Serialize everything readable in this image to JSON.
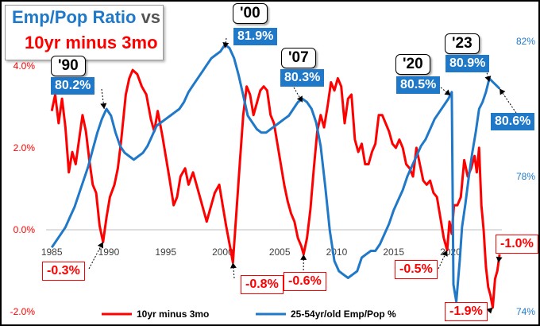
{
  "chart_data": {
    "type": "line",
    "title_part1": "Emp/Pop Ratio",
    "title_vs": " vs",
    "title_part2": "10yr minus 3mo",
    "xlim": [
      1984.5,
      2024.5
    ],
    "x_ticks": [
      "1985",
      "1990",
      "1995",
      "2000",
      "2005",
      "2010",
      "2015",
      "2020"
    ],
    "y_left": {
      "ticks": [
        "4.0%",
        "2.0%",
        "0.0%",
        "-2.0%"
      ],
      "values": [
        4,
        2,
        0,
        -2
      ],
      "ylim": [
        -2,
        4.6
      ]
    },
    "y_right": {
      "ticks": [
        "82%",
        "78%",
        "74%"
      ],
      "values": [
        82,
        78,
        74
      ],
      "ylim": [
        74,
        82
      ]
    },
    "series": [
      {
        "name": "10yr minus 3mo",
        "color": "#ff0000",
        "axis": "left",
        "points": [
          [
            1985.0,
            2.9
          ],
          [
            1985.3,
            3.3
          ],
          [
            1985.6,
            2.6
          ],
          [
            1985.9,
            3.2
          ],
          [
            1986.2,
            2.5
          ],
          [
            1986.5,
            1.4
          ],
          [
            1986.8,
            1.9
          ],
          [
            1987.1,
            1.6
          ],
          [
            1987.4,
            2.2
          ],
          [
            1987.7,
            2.8
          ],
          [
            1988.0,
            2.4
          ],
          [
            1988.3,
            1.7
          ],
          [
            1988.6,
            1.1
          ],
          [
            1988.9,
            0.9
          ],
          [
            1989.2,
            0.1
          ],
          [
            1989.5,
            -0.3
          ],
          [
            1989.8,
            0.3
          ],
          [
            1990.1,
            0.8
          ],
          [
            1990.5,
            1.1
          ],
          [
            1990.8,
            1.5
          ],
          [
            1991.1,
            2.2
          ],
          [
            1991.5,
            3.3
          ],
          [
            1991.8,
            3.7
          ],
          [
            1992.1,
            3.9
          ],
          [
            1992.5,
            3.8
          ],
          [
            1992.9,
            3.5
          ],
          [
            1993.3,
            3.3
          ],
          [
            1993.7,
            2.7
          ],
          [
            1994.0,
            2.4
          ],
          [
            1994.3,
            2.9
          ],
          [
            1994.7,
            2.3
          ],
          [
            1995.0,
            1.8
          ],
          [
            1995.3,
            1.3
          ],
          [
            1995.7,
            0.6
          ],
          [
            1996.0,
            0.8
          ],
          [
            1996.3,
            1.3
          ],
          [
            1996.7,
            1.5
          ],
          [
            1997.0,
            1.1
          ],
          [
            1997.4,
            1.4
          ],
          [
            1997.8,
            1.0
          ],
          [
            1998.2,
            0.6
          ],
          [
            1998.6,
            0.2
          ],
          [
            1998.9,
            0.5
          ],
          [
            1999.3,
            0.9
          ],
          [
            1999.7,
            1.1
          ],
          [
            2000.0,
            0.6
          ],
          [
            2000.3,
            0.1
          ],
          [
            2000.7,
            -0.5
          ],
          [
            2000.9,
            -0.8
          ],
          [
            2001.2,
            0.4
          ],
          [
            2001.5,
            1.6
          ],
          [
            2001.8,
            2.8
          ],
          [
            2002.1,
            3.5
          ],
          [
            2002.4,
            3.3
          ],
          [
            2002.7,
            2.8
          ],
          [
            2003.0,
            3.1
          ],
          [
            2003.3,
            3.4
          ],
          [
            2003.6,
            3.5
          ],
          [
            2003.9,
            3.4
          ],
          [
            2004.2,
            2.8
          ],
          [
            2004.5,
            2.6
          ],
          [
            2004.8,
            2.1
          ],
          [
            2005.1,
            1.6
          ],
          [
            2005.4,
            1.1
          ],
          [
            2005.7,
            0.7
          ],
          [
            2006.0,
            0.4
          ],
          [
            2006.3,
            0.2
          ],
          [
            2006.6,
            -0.2
          ],
          [
            2006.9,
            -0.4
          ],
          [
            2007.1,
            -0.6
          ],
          [
            2007.4,
            -0.2
          ],
          [
            2007.7,
            0.5
          ],
          [
            2008.0,
            1.5
          ],
          [
            2008.3,
            2.4
          ],
          [
            2008.6,
            2.8
          ],
          [
            2008.9,
            2.5
          ],
          [
            2009.2,
            3.0
          ],
          [
            2009.5,
            3.6
          ],
          [
            2009.8,
            3.4
          ],
          [
            2010.1,
            3.7
          ],
          [
            2010.4,
            3.5
          ],
          [
            2010.7,
            2.6
          ],
          [
            2011.0,
            3.2
          ],
          [
            2011.3,
            3.3
          ],
          [
            2011.6,
            2.2
          ],
          [
            2011.9,
            1.9
          ],
          [
            2012.2,
            2.1
          ],
          [
            2012.5,
            1.6
          ],
          [
            2012.8,
            1.6
          ],
          [
            2013.1,
            1.9
          ],
          [
            2013.4,
            2.1
          ],
          [
            2013.7,
            2.8
          ],
          [
            2014.0,
            2.8
          ],
          [
            2014.3,
            2.6
          ],
          [
            2014.6,
            2.4
          ],
          [
            2014.9,
            2.1
          ],
          [
            2015.2,
            2.0
          ],
          [
            2015.5,
            2.2
          ],
          [
            2015.8,
            2.0
          ],
          [
            2016.1,
            1.6
          ],
          [
            2016.4,
            1.5
          ],
          [
            2016.7,
            1.3
          ],
          [
            2017.0,
            2.0
          ],
          [
            2017.3,
            1.6
          ],
          [
            2017.6,
            1.2
          ],
          [
            2017.9,
            1.1
          ],
          [
            2018.2,
            1.2
          ],
          [
            2018.5,
            0.9
          ],
          [
            2018.8,
            0.8
          ],
          [
            2019.1,
            0.3
          ],
          [
            2019.4,
            -0.2
          ],
          [
            2019.7,
            -0.5
          ],
          [
            2019.9,
            0.2
          ],
          [
            2020.1,
            -0.1
          ],
          [
            2020.3,
            0.6
          ],
          [
            2020.6,
            0.6
          ],
          [
            2020.9,
            0.8
          ],
          [
            2021.2,
            1.7
          ],
          [
            2021.5,
            1.3
          ],
          [
            2021.8,
            1.5
          ],
          [
            2022.1,
            1.8
          ],
          [
            2022.3,
            1.4
          ],
          [
            2022.5,
            2.0
          ],
          [
            2022.7,
            0.6
          ],
          [
            2022.9,
            0.0
          ],
          [
            2023.1,
            -0.9
          ],
          [
            2023.3,
            -1.4
          ],
          [
            2023.5,
            -1.6
          ],
          [
            2023.7,
            -1.9
          ],
          [
            2023.9,
            -1.2
          ],
          [
            2024.1,
            -1.0
          ],
          [
            2024.3,
            -0.6
          ]
        ]
      },
      {
        "name": "25-54yr/old Emp/Pop %",
        "color": "#1f78c8",
        "axis": "right",
        "points": [
          [
            1985.0,
            75.9
          ],
          [
            1985.4,
            76.1
          ],
          [
            1985.8,
            76.3
          ],
          [
            1986.2,
            76.5
          ],
          [
            1986.6,
            76.8
          ],
          [
            1987.0,
            77.1
          ],
          [
            1987.4,
            77.5
          ],
          [
            1987.8,
            77.9
          ],
          [
            1988.2,
            78.3
          ],
          [
            1988.6,
            78.8
          ],
          [
            1989.0,
            79.3
          ],
          [
            1989.4,
            79.7
          ],
          [
            1989.8,
            80.0
          ],
          [
            1990.2,
            79.8
          ],
          [
            1990.6,
            79.3
          ],
          [
            1991.0,
            78.9
          ],
          [
            1991.4,
            78.7
          ],
          [
            1991.8,
            78.6
          ],
          [
            1992.2,
            78.5
          ],
          [
            1992.6,
            78.6
          ],
          [
            1993.0,
            78.7
          ],
          [
            1993.4,
            78.9
          ],
          [
            1993.8,
            79.2
          ],
          [
            1994.2,
            79.5
          ],
          [
            1994.6,
            79.6
          ],
          [
            1995.0,
            79.7
          ],
          [
            1995.4,
            79.8
          ],
          [
            1995.8,
            79.9
          ],
          [
            1996.2,
            80.0
          ],
          [
            1996.6,
            80.2
          ],
          [
            1997.0,
            80.5
          ],
          [
            1997.4,
            80.7
          ],
          [
            1997.8,
            80.9
          ],
          [
            1998.2,
            81.1
          ],
          [
            1998.6,
            81.3
          ],
          [
            1999.0,
            81.5
          ],
          [
            1999.4,
            81.6
          ],
          [
            1999.8,
            81.7
          ],
          [
            2000.2,
            81.9
          ],
          [
            2000.6,
            81.8
          ],
          [
            2001.0,
            81.5
          ],
          [
            2001.4,
            81.0
          ],
          [
            2001.8,
            80.4
          ],
          [
            2002.2,
            79.8
          ],
          [
            2002.6,
            79.6
          ],
          [
            2003.0,
            79.4
          ],
          [
            2003.4,
            79.3
          ],
          [
            2003.8,
            79.3
          ],
          [
            2004.2,
            79.4
          ],
          [
            2004.6,
            79.5
          ],
          [
            2005.0,
            79.6
          ],
          [
            2005.4,
            79.7
          ],
          [
            2005.8,
            79.8
          ],
          [
            2006.2,
            80.0
          ],
          [
            2006.6,
            80.2
          ],
          [
            2007.0,
            80.3
          ],
          [
            2007.4,
            80.2
          ],
          [
            2007.8,
            80.0
          ],
          [
            2008.2,
            79.6
          ],
          [
            2008.6,
            78.9
          ],
          [
            2009.0,
            77.7
          ],
          [
            2009.4,
            76.4
          ],
          [
            2009.8,
            75.5
          ],
          [
            2010.2,
            75.2
          ],
          [
            2010.6,
            75.1
          ],
          [
            2011.0,
            75.0
          ],
          [
            2011.4,
            75.1
          ],
          [
            2011.8,
            75.2
          ],
          [
            2012.2,
            75.6
          ],
          [
            2012.6,
            75.7
          ],
          [
            2013.0,
            75.8
          ],
          [
            2013.4,
            75.8
          ],
          [
            2013.8,
            76.0
          ],
          [
            2014.2,
            76.3
          ],
          [
            2014.6,
            76.6
          ],
          [
            2015.0,
            77.0
          ],
          [
            2015.4,
            77.3
          ],
          [
            2015.8,
            77.6
          ],
          [
            2016.2,
            78.0
          ],
          [
            2016.6,
            78.3
          ],
          [
            2017.0,
            78.6
          ],
          [
            2017.4,
            78.9
          ],
          [
            2017.8,
            79.1
          ],
          [
            2018.2,
            79.4
          ],
          [
            2018.6,
            79.7
          ],
          [
            2019.0,
            79.9
          ],
          [
            2019.4,
            80.1
          ],
          [
            2019.8,
            80.3
          ],
          [
            2020.1,
            80.5
          ],
          [
            2020.25,
            74.8
          ],
          [
            2020.5,
            74.3
          ],
          [
            2020.8,
            75.5
          ],
          [
            2021.0,
            76.5
          ],
          [
            2021.3,
            77.2
          ],
          [
            2021.6,
            78.0
          ],
          [
            2021.9,
            78.7
          ],
          [
            2022.2,
            79.3
          ],
          [
            2022.5,
            80.0
          ],
          [
            2022.8,
            80.2
          ],
          [
            2023.1,
            80.5
          ],
          [
            2023.4,
            80.9
          ],
          [
            2023.7,
            80.8
          ],
          [
            2024.0,
            80.7
          ],
          [
            2024.3,
            80.6
          ]
        ]
      }
    ],
    "year_labels": [
      "'90",
      "'00",
      "'07",
      "'20",
      "'23"
    ],
    "emp_labels": [
      "80.2%",
      "81.9%",
      "80.3%",
      "80.5%",
      "80.9%",
      "80.6%"
    ],
    "spread_labels": [
      "-0.3%",
      "-0.8%",
      "-0.6%",
      "-0.5%",
      "-1.9%",
      "-1.0%"
    ],
    "legend": [
      "10yr minus 3mo",
      "25-54yr/old Emp/Pop %"
    ]
  }
}
